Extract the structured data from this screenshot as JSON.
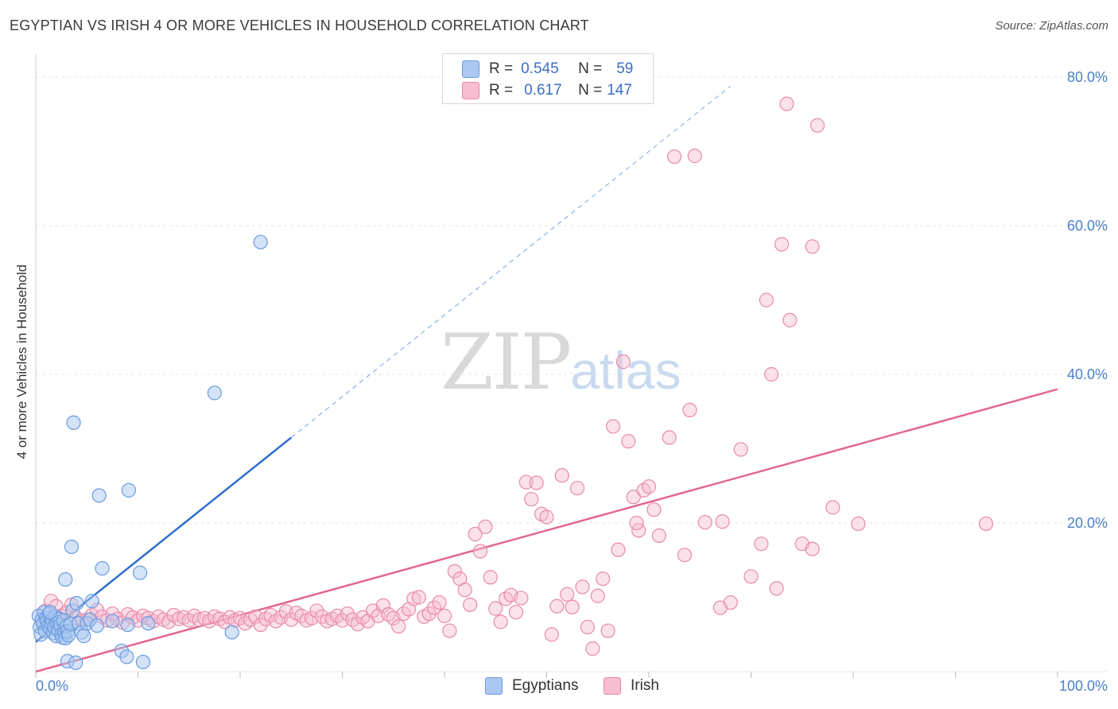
{
  "header": {
    "title": "EGYPTIAN VS IRISH 4 OR MORE VEHICLES IN HOUSEHOLD CORRELATION CHART",
    "source": "Source: ZipAtlas.com"
  },
  "watermark": {
    "zip": "ZIP",
    "atlas": "atlas"
  },
  "legend": {
    "rows": [
      {
        "r_label": "R =",
        "r_value": "0.545",
        "n_label": "N =",
        "n_value": "59"
      },
      {
        "r_label": "R =",
        "r_value": "0.617",
        "n_label": "N =",
        "n_value": "147"
      }
    ]
  },
  "colors": {
    "egyptians_fill": "#aac8f0",
    "egyptians_stroke": "#6b9be0",
    "egyptians_line": "#2f6fce",
    "irish_fill": "#f7bdd0",
    "irish_stroke": "#e88aaa",
    "irish_line": "#e3678f",
    "grid": "#e4e4e4",
    "tick_text": "#4a7fc9"
  },
  "chart_data": {
    "type": "scatter",
    "title": "EGYPTIAN VS IRISH 4 OR MORE VEHICLES IN HOUSEHOLD CORRELATION CHART",
    "xlabel": "",
    "ylabel": "4 or more Vehicles in Household",
    "xlim": [
      0,
      100
    ],
    "ylim": [
      0,
      85
    ],
    "x_tick_labels": [
      "0.0%",
      "100.0%"
    ],
    "y_ticks": [
      20,
      40,
      60,
      80
    ],
    "y_tick_labels": [
      "20.0%",
      "40.0%",
      "60.0%",
      "80.0%"
    ],
    "grid": true,
    "legend_position": "top-center",
    "series": [
      {
        "name": "Egyptians",
        "r": 0.545,
        "n": 59,
        "trend": {
          "x0": 0,
          "y0": 4.0,
          "x1": 25,
          "y1": 31.5,
          "dashed_to_x": 68
        },
        "points": [
          [
            0.3,
            7.5
          ],
          [
            0.4,
            6.0
          ],
          [
            0.5,
            5.0
          ],
          [
            0.6,
            7.0
          ],
          [
            0.7,
            6.5
          ],
          [
            0.8,
            8.0
          ],
          [
            0.9,
            5.5
          ],
          [
            1.0,
            7.2
          ],
          [
            1.1,
            6.8
          ],
          [
            1.2,
            6.2
          ],
          [
            1.3,
            7.8
          ],
          [
            1.4,
            5.8
          ],
          [
            1.5,
            6.5
          ],
          [
            1.6,
            7.0
          ],
          [
            1.7,
            5.2
          ],
          [
            1.8,
            6.0
          ],
          [
            1.9,
            7.4
          ],
          [
            2.0,
            4.8
          ],
          [
            2.1,
            6.6
          ],
          [
            2.2,
            5.6
          ],
          [
            2.3,
            7.1
          ],
          [
            2.4,
            6.3
          ],
          [
            2.5,
            5.0
          ],
          [
            2.6,
            4.6
          ],
          [
            2.7,
            6.9
          ],
          [
            2.8,
            5.3
          ],
          [
            2.9,
            4.5
          ],
          [
            3.0,
            6.1
          ],
          [
            3.1,
            5.4
          ],
          [
            3.2,
            4.9
          ],
          [
            3.4,
            6.4
          ],
          [
            3.6,
            8.2
          ],
          [
            4.0,
            9.2
          ],
          [
            4.2,
            6.5
          ],
          [
            4.5,
            5.3
          ],
          [
            4.7,
            4.8
          ],
          [
            5.0,
            6.5
          ],
          [
            5.3,
            7.0
          ],
          [
            5.5,
            9.5
          ],
          [
            6.0,
            6.2
          ],
          [
            7.5,
            6.8
          ],
          [
            9.0,
            6.3
          ],
          [
            11.0,
            6.5
          ],
          [
            3.1,
            1.4
          ],
          [
            3.9,
            1.2
          ],
          [
            8.4,
            2.8
          ],
          [
            10.5,
            1.3
          ],
          [
            3.7,
            33.5
          ],
          [
            6.2,
            23.7
          ],
          [
            9.1,
            24.4
          ],
          [
            3.5,
            16.8
          ],
          [
            6.5,
            13.9
          ],
          [
            2.9,
            12.4
          ],
          [
            10.2,
            13.3
          ],
          [
            17.5,
            37.5
          ],
          [
            22.0,
            57.8
          ],
          [
            19.2,
            5.3
          ],
          [
            8.9,
            2.0
          ],
          [
            1.4,
            8.0
          ]
        ]
      },
      {
        "name": "Irish",
        "r": 0.617,
        "n": 147,
        "trend": {
          "x0": 0,
          "y0": 0.0,
          "x1": 100,
          "y1": 38.0
        },
        "points": [
          [
            1.0,
            8.2
          ],
          [
            1.5,
            9.5
          ],
          [
            2.0,
            8.8
          ],
          [
            2.5,
            7.5
          ],
          [
            3.0,
            8.0
          ],
          [
            3.5,
            9.0
          ],
          [
            4.0,
            7.2
          ],
          [
            4.5,
            6.8
          ],
          [
            5.0,
            7.0
          ],
          [
            5.5,
            7.6
          ],
          [
            6.0,
            8.3
          ],
          [
            6.5,
            7.4
          ],
          [
            7.0,
            6.9
          ],
          [
            7.5,
            7.8
          ],
          [
            8.0,
            7.1
          ],
          [
            8.5,
            6.6
          ],
          [
            9.0,
            7.7
          ],
          [
            9.5,
            7.3
          ],
          [
            10.0,
            6.9
          ],
          [
            10.5,
            7.5
          ],
          [
            11.0,
            7.2
          ],
          [
            11.5,
            6.8
          ],
          [
            12.0,
            7.4
          ],
          [
            12.5,
            7.0
          ],
          [
            13.0,
            6.7
          ],
          [
            13.5,
            7.6
          ],
          [
            14.0,
            7.1
          ],
          [
            14.5,
            7.3
          ],
          [
            15.0,
            6.9
          ],
          [
            15.5,
            7.5
          ],
          [
            16.0,
            7.0
          ],
          [
            16.5,
            7.2
          ],
          [
            17.0,
            6.8
          ],
          [
            17.5,
            7.4
          ],
          [
            18.0,
            7.1
          ],
          [
            18.5,
            6.7
          ],
          [
            19.0,
            7.3
          ],
          [
            19.5,
            6.9
          ],
          [
            20.0,
            7.2
          ],
          [
            20.5,
            6.5
          ],
          [
            21.0,
            7.0
          ],
          [
            21.5,
            7.4
          ],
          [
            22.0,
            6.3
          ],
          [
            22.5,
            7.1
          ],
          [
            23.0,
            7.6
          ],
          [
            23.5,
            6.8
          ],
          [
            24.0,
            7.3
          ],
          [
            24.5,
            8.1
          ],
          [
            25.0,
            7.0
          ],
          [
            25.5,
            7.9
          ],
          [
            26.0,
            7.5
          ],
          [
            26.5,
            6.9
          ],
          [
            27.0,
            7.2
          ],
          [
            27.5,
            8.2
          ],
          [
            28.0,
            7.4
          ],
          [
            28.5,
            6.8
          ],
          [
            29.0,
            7.1
          ],
          [
            29.5,
            7.5
          ],
          [
            30.0,
            6.9
          ],
          [
            30.5,
            7.8
          ],
          [
            31.0,
            7.0
          ],
          [
            31.5,
            6.4
          ],
          [
            32.0,
            7.3
          ],
          [
            32.5,
            6.8
          ],
          [
            33.0,
            8.2
          ],
          [
            33.5,
            7.5
          ],
          [
            34.0,
            8.9
          ],
          [
            34.5,
            7.7
          ],
          [
            35.0,
            7.2
          ],
          [
            35.5,
            6.1
          ],
          [
            36.0,
            7.8
          ],
          [
            36.5,
            8.4
          ],
          [
            37.0,
            9.8
          ],
          [
            37.5,
            10.0
          ],
          [
            38.0,
            7.4
          ],
          [
            38.5,
            7.8
          ],
          [
            39.0,
            8.6
          ],
          [
            39.5,
            9.3
          ],
          [
            40.0,
            7.5
          ],
          [
            40.5,
            5.5
          ],
          [
            41.0,
            13.5
          ],
          [
            41.5,
            12.5
          ],
          [
            42.0,
            11.0
          ],
          [
            42.5,
            9.0
          ],
          [
            43.0,
            18.5
          ],
          [
            43.5,
            16.2
          ],
          [
            44.0,
            19.5
          ],
          [
            44.5,
            12.7
          ],
          [
            45.0,
            8.5
          ],
          [
            45.5,
            6.7
          ],
          [
            46.0,
            9.8
          ],
          [
            46.5,
            10.3
          ],
          [
            47.0,
            8.0
          ],
          [
            47.5,
            9.9
          ],
          [
            48.0,
            25.5
          ],
          [
            48.5,
            23.2
          ],
          [
            49.0,
            25.4
          ],
          [
            49.5,
            21.2
          ],
          [
            50.0,
            20.8
          ],
          [
            50.5,
            5.0
          ],
          [
            51.0,
            8.8
          ],
          [
            51.5,
            26.4
          ],
          [
            52.0,
            10.4
          ],
          [
            52.5,
            8.7
          ],
          [
            53.0,
            24.7
          ],
          [
            53.5,
            11.4
          ],
          [
            54.0,
            6.0
          ],
          [
            54.5,
            3.1
          ],
          [
            55.0,
            10.2
          ],
          [
            55.5,
            12.5
          ],
          [
            56.0,
            5.5
          ],
          [
            56.5,
            33.0
          ],
          [
            57.0,
            16.4
          ],
          [
            57.5,
            41.7
          ],
          [
            58.0,
            31.0
          ],
          [
            58.5,
            23.5
          ],
          [
            59.0,
            19.0
          ],
          [
            59.5,
            24.4
          ],
          [
            60.0,
            24.9
          ],
          [
            60.5,
            21.8
          ],
          [
            61.0,
            18.3
          ],
          [
            62.0,
            31.5
          ],
          [
            63.5,
            15.7
          ],
          [
            64.0,
            35.2
          ],
          [
            65.5,
            20.1
          ],
          [
            67.0,
            8.6
          ],
          [
            68.0,
            9.3
          ],
          [
            69.0,
            29.9
          ],
          [
            70.0,
            12.8
          ],
          [
            71.0,
            17.2
          ],
          [
            72.5,
            11.2
          ],
          [
            73.0,
            57.5
          ],
          [
            75.0,
            17.2
          ],
          [
            76.0,
            16.5
          ],
          [
            78.0,
            22.1
          ],
          [
            80.5,
            19.9
          ],
          [
            62.5,
            69.3
          ],
          [
            64.5,
            69.4
          ],
          [
            73.5,
            76.4
          ],
          [
            76.5,
            73.5
          ],
          [
            76.0,
            57.2
          ],
          [
            71.5,
            50.0
          ],
          [
            73.8,
            47.3
          ],
          [
            72.0,
            40.0
          ],
          [
            93.0,
            19.9
          ],
          [
            58.8,
            20.0
          ],
          [
            67.2,
            20.2
          ]
        ]
      }
    ]
  },
  "bottom_legend": {
    "items": [
      "Egyptians",
      "Irish"
    ]
  }
}
